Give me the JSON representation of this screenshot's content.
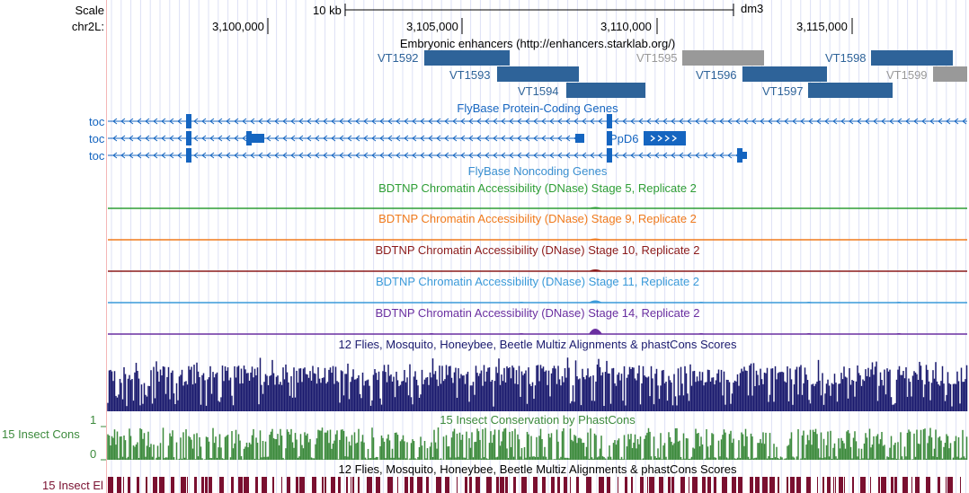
{
  "ruler": {
    "scale_label": "Scale",
    "chrom_label": "chr2L:",
    "scale_bar": "10 kb",
    "assembly": "dm3",
    "positions": [
      "3,100,000",
      "3,105,000",
      "3,110,000",
      "3,115,000"
    ]
  },
  "tracks": {
    "enhancers": {
      "title": "Embryonic enhancers (http://enhancers.starklab.org/)",
      "items": [
        {
          "name": "VT1592",
          "color": "#2e6399"
        },
        {
          "name": "VT1593",
          "color": "#2e6399"
        },
        {
          "name": "VT1594",
          "color": "#2e6399"
        },
        {
          "name": "VT1595",
          "color": "#999999"
        },
        {
          "name": "VT1596",
          "color": "#2e6399"
        },
        {
          "name": "VT1597",
          "color": "#2e6399"
        },
        {
          "name": "VT1598",
          "color": "#2e6399"
        },
        {
          "name": "VT1599",
          "color": "#999999"
        }
      ]
    },
    "genes": {
      "title": "FlyBase Protein-Coding Genes",
      "rows": [
        "toc",
        "toc",
        "toc"
      ],
      "gene_label": "PpD6",
      "color": "#1565c0"
    },
    "noncoding": {
      "title": "FlyBase Noncoding Genes"
    },
    "dnase": [
      {
        "title": "BDTNP Chromatin Accessibility (DNase) Stage 5, Replicate 2",
        "color": "#2e9e35"
      },
      {
        "title": "BDTNP Chromatin Accessibility (DNase) Stage 9, Replicate 2",
        "color": "#f07a1c"
      },
      {
        "title": "BDTNP Chromatin Accessibility (DNase) Stage 10, Replicate 2",
        "color": "#8b1a1a"
      },
      {
        "title": "BDTNP Chromatin Accessibility (DNase) Stage 11, Replicate 2",
        "color": "#3a9ad9"
      },
      {
        "title": "BDTNP Chromatin Accessibility (DNase) Stage 14, Replicate 2",
        "color": "#6a2fa0"
      }
    ],
    "multiz": {
      "title": "12 Flies, Mosquito, Honeybee, Beetle Multiz Alignments & phastCons Scores",
      "color": "#1a1a6e"
    },
    "phastcons": {
      "title": "15 Insect Conservation by PhastCons",
      "side_label": "15 Insect Cons",
      "axis_max": "1",
      "axis_min": "0",
      "color": "#3c8a3c"
    },
    "elements": {
      "title": "12 Flies, Mosquito, Honeybee, Beetle Multiz Alignments & phastCons Scores",
      "side_label": "15 Insect El",
      "color": "#7a1030"
    }
  }
}
